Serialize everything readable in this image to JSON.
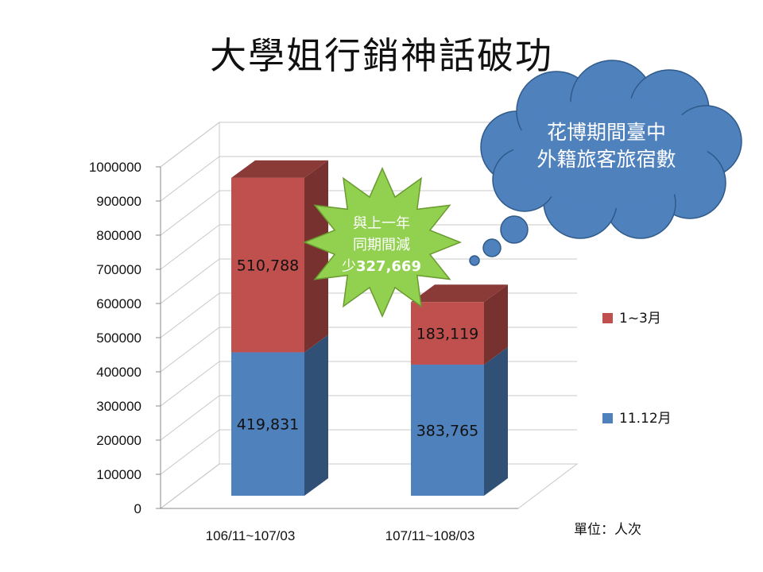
{
  "title": "大學姐行銷神話破功",
  "unit_note": "單位：人次",
  "callout_cloud": {
    "line1": "花博期間臺中",
    "line2": "外籍旅客旅宿數"
  },
  "callout_star": {
    "line1": "與上一年",
    "line2": "同期間減",
    "line3_prefix": "少",
    "line3_value": "327,669"
  },
  "colors": {
    "series_1112": "#4f81bd",
    "series_13": "#c0504d",
    "cloud": "#4f81bd",
    "star": "#92d050"
  },
  "chart_data": {
    "type": "bar",
    "stacked": true,
    "categories": [
      "106/11~107/03",
      "107/11~108/03"
    ],
    "series": [
      {
        "name": "11.12月",
        "values": [
          419831,
          383765
        ],
        "labels": [
          "419,831",
          "383,765"
        ]
      },
      {
        "name": "1~3月",
        "values": [
          510788,
          183119
        ],
        "labels": [
          "510,788",
          "183,119"
        ]
      }
    ],
    "ylim": [
      0,
      1000000
    ],
    "yticks": [
      "0",
      "100000",
      "200000",
      "300000",
      "400000",
      "500000",
      "600000",
      "700000",
      "800000",
      "900000",
      "1000000"
    ],
    "grid": true,
    "legend_position": "right"
  }
}
